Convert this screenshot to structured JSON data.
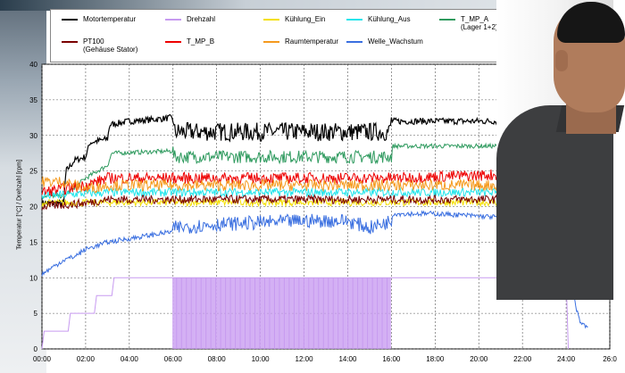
{
  "chart_data": {
    "type": "line",
    "ylabel": "Temperatur [°C] / Drehzahl [rpm]",
    "ylim": [
      0,
      40
    ],
    "xlim": [
      0,
      26
    ],
    "yticks": [
      0,
      5,
      10,
      15,
      20,
      25,
      30,
      35,
      40
    ],
    "xticks": [
      0,
      2,
      4,
      6,
      8,
      10,
      12,
      14,
      16,
      18,
      20,
      22,
      24,
      26
    ],
    "xtick_labels": [
      "00:00",
      "02:00",
      "04:00",
      "06:00",
      "08:00",
      "10:00",
      "12:00",
      "14:00",
      "16:00",
      "18:00",
      "20:00",
      "22:00",
      "24:00",
      "26:0"
    ],
    "grid": true,
    "legend_position": "top",
    "legend": [
      {
        "label": "Motortemperatur",
        "color": "#000000"
      },
      {
        "label": "Drehzahl",
        "color": "#c79af0"
      },
      {
        "label": "Kühlung_Ein",
        "color": "#f4e000"
      },
      {
        "label": "Kühlung_Aus",
        "color": "#22e5ec"
      },
      {
        "label": "T_MP_A",
        "color": "#2e9a5e",
        "label2": "(Lager 1+2)"
      },
      {
        "label": "PT100",
        "color": "#7a0000",
        "label2": "(Gehäuse Stator)"
      },
      {
        "label": "T_MP_B",
        "color": "#ee0000"
      },
      {
        "label": "Raumtemperatur",
        "color": "#f59a1e"
      },
      {
        "label": "Welle_Wachstum",
        "color": "#3a6fe0"
      }
    ],
    "series": [
      {
        "name": "Motortemperatur",
        "color": "#000000",
        "width": 1.2,
        "points": [
          [
            0,
            20.5
          ],
          [
            1,
            20.5
          ],
          [
            1.1,
            25
          ],
          [
            1.5,
            26.5
          ],
          [
            2.0,
            27
          ],
          [
            2.2,
            29
          ],
          [
            3.0,
            29.5
          ],
          [
            3.1,
            31.5
          ],
          [
            4.0,
            32
          ],
          [
            5.0,
            32.2
          ],
          [
            6.0,
            32.5
          ],
          [
            6.05,
            30.5
          ],
          [
            10,
            30.5
          ],
          [
            15.9,
            30.5
          ],
          [
            16.0,
            32
          ],
          [
            20,
            32
          ],
          [
            21,
            32
          ]
        ],
        "noise": 1.3,
        "noise_range": [
          6.0,
          16.0
        ]
      },
      {
        "name": "T_MP_A",
        "color": "#2e9a5e",
        "width": 1.0,
        "points": [
          [
            0,
            21.5
          ],
          [
            1,
            21.5
          ],
          [
            2.0,
            24
          ],
          [
            3.0,
            25.8
          ],
          [
            3.2,
            27.5
          ],
          [
            6.0,
            27.8
          ],
          [
            6.05,
            27
          ],
          [
            16,
            27
          ],
          [
            16.05,
            28.5
          ],
          [
            21,
            28.5
          ]
        ],
        "noise": 0.9,
        "noise_range": [
          6.0,
          16.0
        ]
      },
      {
        "name": "Kühlung_Ein",
        "color": "#f4e000",
        "width": 1.0,
        "points": [
          [
            0,
            20.5
          ],
          [
            3,
            20.6
          ],
          [
            21,
            20.6
          ]
        ],
        "noise": 0.5
      },
      {
        "name": "Kühlung_Aus",
        "color": "#22e5ec",
        "width": 1.0,
        "points": [
          [
            0,
            21.5
          ],
          [
            3,
            22
          ],
          [
            21,
            22
          ]
        ],
        "noise": 0.6
      },
      {
        "name": "PT100",
        "color": "#7a0000",
        "width": 1.0,
        "points": [
          [
            0,
            20
          ],
          [
            2,
            20.5
          ],
          [
            3,
            21
          ],
          [
            21,
            21
          ]
        ],
        "noise": 0.6
      },
      {
        "name": "T_MP_B",
        "color": "#ee0000",
        "width": 1.0,
        "points": [
          [
            0,
            22
          ],
          [
            2,
            23
          ],
          [
            3,
            24
          ],
          [
            16,
            24
          ],
          [
            21,
            24.5
          ]
        ],
        "noise": 0.8
      },
      {
        "name": "Raumtemperatur",
        "color": "#f59a1e",
        "width": 1.0,
        "points": [
          [
            0,
            23.5
          ],
          [
            1,
            23.5
          ],
          [
            2,
            22.5
          ],
          [
            3,
            23
          ],
          [
            21,
            23
          ]
        ],
        "noise": 0.8
      },
      {
        "name": "Welle_Wachstum",
        "color": "#3a6fe0",
        "width": 1.0,
        "points": [
          [
            0,
            10.5
          ],
          [
            0.5,
            11.5
          ],
          [
            1.0,
            12.5
          ],
          [
            1.5,
            13
          ],
          [
            2.0,
            14
          ],
          [
            2.5,
            14.5
          ],
          [
            3.0,
            15
          ],
          [
            4.0,
            15.5
          ],
          [
            5.0,
            16
          ],
          [
            6.0,
            16.5
          ],
          [
            6.05,
            17
          ],
          [
            8,
            17.5
          ],
          [
            12,
            18
          ],
          [
            14,
            18
          ],
          [
            15,
            17
          ],
          [
            16,
            18
          ],
          [
            16.05,
            19
          ],
          [
            18,
            19
          ],
          [
            21,
            18.5
          ],
          [
            24.0,
            15
          ],
          [
            24.3,
            8
          ],
          [
            24.6,
            4
          ],
          [
            25,
            3
          ]
        ],
        "noise": 1.0,
        "noise_range": [
          6.0,
          16.0
        ]
      },
      {
        "name": "Drehzahl",
        "color": "#c79af0",
        "width": 1.0,
        "points": [
          [
            0,
            0
          ],
          [
            0.1,
            2.5
          ],
          [
            1.2,
            2.5
          ],
          [
            1.3,
            5
          ],
          [
            2.4,
            5
          ],
          [
            2.5,
            7.5
          ],
          [
            3.2,
            7.5
          ],
          [
            3.3,
            10
          ],
          [
            6.0,
            10
          ],
          [
            16,
            10
          ],
          [
            24,
            10
          ],
          [
            24.1,
            0
          ]
        ],
        "switching_range": [
          6.0,
          16.0
        ]
      }
    ]
  }
}
